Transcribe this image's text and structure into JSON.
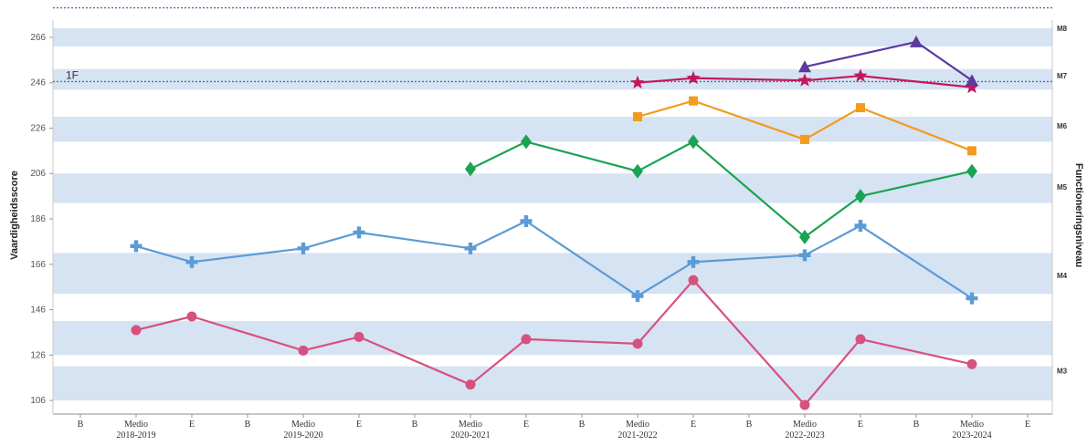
{
  "chart_data": {
    "type": "line",
    "ylabel": "Vaardigheidsscore",
    "y2label": "Functioneringsniveau",
    "ylim": [
      100,
      272
    ],
    "yticks": [
      106,
      126,
      146,
      166,
      186,
      206,
      226,
      246,
      266
    ],
    "x_ticks": [
      {
        "line1": "B",
        "line2": ""
      },
      {
        "line1": "Medio",
        "line2": "2018-2019"
      },
      {
        "line1": "E",
        "line2": ""
      },
      {
        "line1": "B",
        "line2": ""
      },
      {
        "line1": "Medio",
        "line2": "2019-2020"
      },
      {
        "line1": "E",
        "line2": ""
      },
      {
        "line1": "B",
        "line2": ""
      },
      {
        "line1": "Medio",
        "line2": "2020-2021"
      },
      {
        "line1": "E",
        "line2": ""
      },
      {
        "line1": "B",
        "line2": ""
      },
      {
        "line1": "Medio",
        "line2": "2021-2022"
      },
      {
        "line1": "E",
        "line2": ""
      },
      {
        "line1": "B",
        "line2": ""
      },
      {
        "line1": "Medio",
        "line2": "2022-2023"
      },
      {
        "line1": "E",
        "line2": ""
      },
      {
        "line1": "B",
        "line2": ""
      },
      {
        "line1": "Medio",
        "line2": "2023-2024"
      },
      {
        "line1": "E",
        "line2": ""
      }
    ],
    "bands": [
      [
        106,
        121
      ],
      [
        126,
        141
      ],
      [
        153,
        171
      ],
      [
        193,
        206
      ],
      [
        220,
        231
      ],
      [
        243,
        252
      ],
      [
        262,
        270
      ]
    ],
    "levels": [
      {
        "label": "M3",
        "y": 119
      },
      {
        "label": "M4",
        "y": 161
      },
      {
        "label": "M5",
        "y": 200
      },
      {
        "label": "M6",
        "y": 227
      },
      {
        "label": "M7",
        "y": 249
      },
      {
        "label": "M8",
        "y": 270
      }
    ],
    "reference_lines": [
      {
        "label": "1F",
        "y": 246.5
      },
      {
        "label": "",
        "y": 279
      }
    ],
    "series": [
      {
        "color": "#d6527e",
        "marker": "circle",
        "x": [
          1,
          2,
          4,
          5,
          7,
          8,
          10,
          11,
          13,
          14,
          16
        ],
        "y": [
          137,
          143,
          128,
          134,
          113,
          133,
          131,
          159,
          104,
          133,
          122
        ]
      },
      {
        "color": "#5b9bd5",
        "marker": "cross",
        "x": [
          1,
          2,
          4,
          5,
          7,
          8,
          10,
          11,
          13,
          14,
          16
        ],
        "y": [
          174,
          167,
          173,
          180,
          173,
          185,
          152,
          167,
          170,
          183,
          151
        ]
      },
      {
        "color": "#1aa353",
        "marker": "diamond",
        "x": [
          7,
          8,
          10,
          11,
          13,
          14,
          16
        ],
        "y": [
          208,
          220,
          207,
          220,
          178,
          196,
          207
        ]
      },
      {
        "color": "#f29b1d",
        "marker": "square",
        "x": [
          10,
          11,
          13,
          14,
          16
        ],
        "y": [
          231,
          238,
          221,
          235,
          216
        ]
      },
      {
        "color": "#c2185b",
        "marker": "star",
        "x": [
          10,
          11,
          13,
          14,
          16
        ],
        "y": [
          246,
          248,
          247,
          249,
          244
        ]
      },
      {
        "color": "#5b3a9e",
        "marker": "triangle",
        "x": [
          13,
          15,
          16
        ],
        "y": [
          253,
          264,
          247
        ]
      }
    ]
  }
}
